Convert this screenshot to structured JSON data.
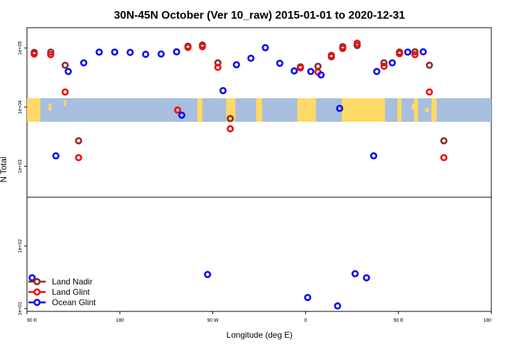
{
  "chart_data": {
    "type": "scatter",
    "title": "30N-45N October (Ver 10_raw)   2015-01-01 to 2020-12-31",
    "xlabel": "Longitude (deg E)",
    "ylabel": "N Total",
    "x_ticks": [
      {
        "value": 90,
        "label": "90 E"
      },
      {
        "value": 180,
        "label": "180"
      },
      {
        "value": 270,
        "label": "90 W"
      },
      {
        "value": 360,
        "label": "0"
      },
      {
        "value": 450,
        "label": "90 E"
      },
      {
        "value": 540,
        "label": "180"
      }
    ],
    "xlim": [
      90,
      540
    ],
    "y_ticks_upper": [
      {
        "value": 1000,
        "label": "1e+03"
      },
      {
        "value": 10000,
        "label": "1e+04"
      },
      {
        "value": 100000,
        "label": "1e+05"
      }
    ],
    "y_ticks_lower": [
      {
        "value": 10,
        "label": "1e+01"
      },
      {
        "value": 100,
        "label": "1e+02"
      }
    ],
    "ylim_upper": [
      300,
      220000
    ],
    "ylim_lower": [
      9,
      600
    ],
    "map_strip": {
      "land_color": "#FFD966",
      "ocean_color": "#A7BEDE"
    },
    "series": [
      {
        "name": "Land Nadir",
        "color": "#8B2E2E",
        "points": [
          [
            97,
            84000
          ],
          [
            113,
            85000
          ],
          [
            127,
            51000
          ],
          [
            140,
            2700
          ],
          [
            246,
            107000
          ],
          [
            260,
            112000
          ],
          [
            275,
            56000
          ],
          [
            287,
            6400
          ],
          [
            355,
            48000
          ],
          [
            372,
            49000
          ],
          [
            385,
            71000
          ],
          [
            396,
            105000
          ],
          [
            410,
            110000
          ],
          [
            436,
            56000
          ],
          [
            451,
            85000
          ],
          [
            466,
            86000
          ],
          [
            480,
            51000
          ],
          [
            494,
            2700
          ]
        ]
      },
      {
        "name": "Land Glint",
        "color": "#EE1111",
        "points": [
          [
            97,
            79000
          ],
          [
            113,
            77000
          ],
          [
            127,
            18000
          ],
          [
            140,
            1400
          ],
          [
            236,
            8900
          ],
          [
            246,
            102000
          ],
          [
            260,
            105000
          ],
          [
            275,
            47000
          ],
          [
            287,
            4300
          ],
          [
            355,
            46000
          ],
          [
            372,
            39000
          ],
          [
            385,
            75000
          ],
          [
            396,
            98000
          ],
          [
            410,
            120000
          ],
          [
            436,
            49000
          ],
          [
            451,
            80000
          ],
          [
            466,
            77000
          ],
          [
            480,
            18000
          ],
          [
            494,
            1400
          ]
        ]
      },
      {
        "name": "Ocean Glint",
        "color": "#1111EE",
        "points": [
          [
            95,
            31
          ],
          [
            118,
            1500
          ],
          [
            130,
            40000
          ],
          [
            145,
            56000
          ],
          [
            160,
            85000
          ],
          [
            175,
            85000
          ],
          [
            190,
            84000
          ],
          [
            205,
            78000
          ],
          [
            220,
            79000
          ],
          [
            235,
            86000
          ],
          [
            240,
            7300
          ],
          [
            265,
            35
          ],
          [
            280,
            19000
          ],
          [
            293,
            52000
          ],
          [
            307,
            67000
          ],
          [
            321,
            101000
          ],
          [
            335,
            55000
          ],
          [
            349,
            41000
          ],
          [
            362,
            15
          ],
          [
            365,
            40000
          ],
          [
            375,
            35000
          ],
          [
            391,
            11
          ],
          [
            393,
            9500
          ],
          [
            408,
            36
          ],
          [
            419,
            31
          ],
          [
            426,
            1500
          ],
          [
            429,
            40000
          ],
          [
            444,
            56000
          ],
          [
            459,
            85000
          ],
          [
            474,
            86000
          ]
        ]
      }
    ],
    "legend_position": "bottom-left"
  }
}
